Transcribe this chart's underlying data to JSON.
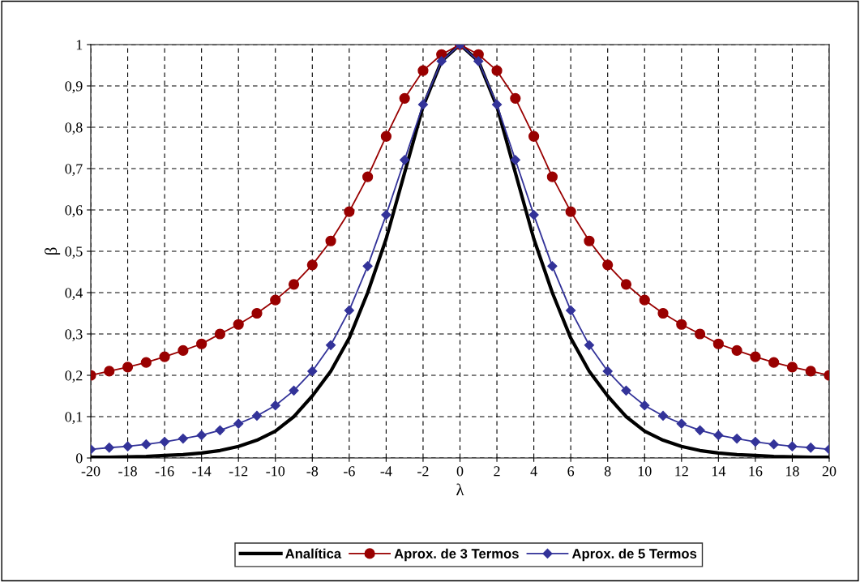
{
  "chart_data": {
    "type": "line",
    "xlabel": "λ",
    "ylabel": "β",
    "x": [
      -20,
      -19,
      -18,
      -17,
      -16,
      -15,
      -14,
      -13,
      -12,
      -11,
      -10,
      -9,
      -8,
      -7,
      -6,
      -5,
      -4,
      -3,
      -2,
      -1,
      0,
      1,
      2,
      3,
      4,
      5,
      6,
      7,
      8,
      9,
      10,
      11,
      12,
      13,
      14,
      15,
      16,
      17,
      18,
      19,
      20
    ],
    "series": [
      {
        "name": "Analítica",
        "color": "#000000",
        "marker": "none",
        "values": [
          0.002,
          0.002,
          0.003,
          0.004,
          0.006,
          0.008,
          0.012,
          0.018,
          0.028,
          0.043,
          0.065,
          0.1,
          0.15,
          0.21,
          0.29,
          0.4,
          0.53,
          0.69,
          0.85,
          0.96,
          1,
          0.96,
          0.85,
          0.69,
          0.53,
          0.4,
          0.29,
          0.21,
          0.15,
          0.1,
          0.065,
          0.043,
          0.028,
          0.018,
          0.012,
          0.008,
          0.006,
          0.004,
          0.003,
          0.002,
          0.002
        ]
      },
      {
        "name": "Aprox. de 3 Termos",
        "color": "#990000",
        "marker": "circle",
        "values": [
          0.2,
          0.21,
          0.22,
          0.231,
          0.245,
          0.26,
          0.276,
          0.3,
          0.323,
          0.35,
          0.382,
          0.42,
          0.467,
          0.525,
          0.596,
          0.68,
          0.778,
          0.87,
          0.937,
          0.976,
          1,
          0.976,
          0.937,
          0.87,
          0.778,
          0.68,
          0.596,
          0.525,
          0.467,
          0.42,
          0.382,
          0.35,
          0.323,
          0.3,
          0.276,
          0.26,
          0.245,
          0.231,
          0.22,
          0.21,
          0.2
        ]
      },
      {
        "name": "Aprox. de 5 Termos",
        "color": "#333399",
        "marker": "diamond",
        "values": [
          0.021,
          0.025,
          0.028,
          0.033,
          0.039,
          0.047,
          0.055,
          0.067,
          0.083,
          0.102,
          0.127,
          0.163,
          0.21,
          0.273,
          0.357,
          0.464,
          0.588,
          0.721,
          0.855,
          0.96,
          1,
          0.96,
          0.855,
          0.721,
          0.588,
          0.464,
          0.357,
          0.273,
          0.21,
          0.163,
          0.127,
          0.102,
          0.083,
          0.067,
          0.055,
          0.047,
          0.039,
          0.033,
          0.028,
          0.025,
          0.021
        ]
      }
    ],
    "xlim": [
      -20,
      20
    ],
    "xticks": [
      -20,
      -18,
      -16,
      -14,
      -12,
      -10,
      -8,
      -6,
      -4,
      -2,
      0,
      2,
      4,
      6,
      8,
      10,
      12,
      14,
      16,
      18,
      20
    ],
    "ylim": [
      0,
      1
    ],
    "yticks": [
      0,
      {
        "value": 0.1,
        "label": "0,1"
      },
      {
        "value": 0.2,
        "label": "0,2"
      },
      {
        "value": 0.3,
        "label": "0,3"
      },
      {
        "value": 0.4,
        "label": "0,4"
      },
      {
        "value": 0.5,
        "label": "0,5"
      },
      {
        "value": 0.6,
        "label": "0,6"
      },
      {
        "value": 0.7,
        "label": "0,7"
      },
      {
        "value": 0.8,
        "label": "0,8"
      },
      {
        "value": 0.9,
        "label": "0,9"
      },
      1
    ],
    "grid": true,
    "legend": "bottom"
  }
}
